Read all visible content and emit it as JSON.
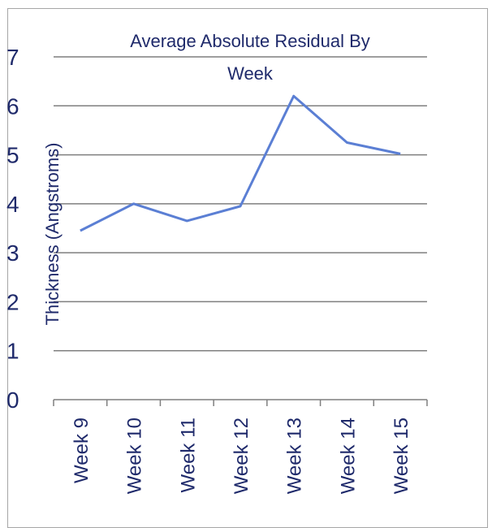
{
  "chart_data": {
    "type": "line",
    "title_line1": "Average Absolute Residual By",
    "title_line2": "Week",
    "ylabel": "Thickness (Angstroms)",
    "xlabel": "",
    "categories": [
      "Week 9",
      "Week 10",
      "Week 11",
      "Week 12",
      "Week 13",
      "Week 14",
      "Week 15"
    ],
    "series": [
      {
        "values": [
          3.45,
          4.0,
          3.65,
          3.95,
          6.2,
          5.25,
          5.02
        ]
      }
    ],
    "ylim": [
      0,
      7
    ],
    "yticks": [
      "0",
      "1",
      "2",
      "3",
      "4",
      "5",
      "6",
      "7"
    ],
    "grid": true,
    "line_color": "#5b7fd4",
    "grid_color": "#7f7f7f",
    "text_color": "#1f2a6b"
  }
}
